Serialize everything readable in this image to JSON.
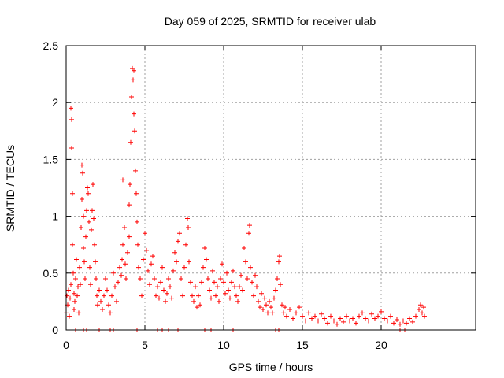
{
  "chart_data": {
    "type": "scatter",
    "title": "Day 059 of 2025, SRMTID for receiver ulab",
    "xlabel": "GPS time / hours",
    "ylabel": "SRMTID / TECUs",
    "xlim": [
      0,
      26
    ],
    "ylim": [
      0,
      2.5
    ],
    "xticks": [
      0,
      5,
      10,
      15,
      20
    ],
    "xtick_labels": [
      "0",
      "5",
      "10",
      "15",
      "20"
    ],
    "yticks": [
      0,
      0.5,
      1,
      1.5,
      2,
      2.5
    ],
    "ytick_labels": [
      "0",
      "0.5",
      "1",
      "1.5",
      "2",
      "2.5"
    ],
    "grid": true,
    "marker": "+",
    "color": "#ff0000",
    "series": [
      {
        "name": "SRMTID",
        "points": [
          [
            0.0,
            0.15
          ],
          [
            0.05,
            0.3
          ],
          [
            0.1,
            0.22
          ],
          [
            0.15,
            0.35
          ],
          [
            0.2,
            0.12
          ],
          [
            0.25,
            0.28
          ],
          [
            0.3,
            0.4
          ],
          [
            0.3,
            1.95
          ],
          [
            0.35,
            1.6
          ],
          [
            0.35,
            1.85
          ],
          [
            0.4,
            1.2
          ],
          [
            0.4,
            0.75
          ],
          [
            0.45,
            0.5
          ],
          [
            0.5,
            0.32
          ],
          [
            0.5,
            0.18
          ],
          [
            0.55,
            0.25
          ],
          [
            0.6,
            0.45
          ],
          [
            0.65,
            0.62
          ],
          [
            0.7,
            0.3
          ],
          [
            0.75,
            0.38
          ],
          [
            0.8,
            0.15
          ],
          [
            0.85,
            0.55
          ],
          [
            0.9,
            0.4
          ],
          [
            0.95,
            0.9
          ],
          [
            1.0,
            1.15
          ],
          [
            1.0,
            1.45
          ],
          [
            1.05,
            1.38
          ],
          [
            1.1,
            1.0
          ],
          [
            1.1,
            0.72
          ],
          [
            1.15,
            0.6
          ],
          [
            1.2,
            0.45
          ],
          [
            1.25,
            0.82
          ],
          [
            1.3,
            1.05
          ],
          [
            1.35,
            1.25
          ],
          [
            1.4,
            1.2
          ],
          [
            1.45,
            0.95
          ],
          [
            1.5,
            0.55
          ],
          [
            1.55,
            0.4
          ],
          [
            1.6,
            0.88
          ],
          [
            1.65,
            1.05
          ],
          [
            1.7,
            1.28
          ],
          [
            1.75,
            0.98
          ],
          [
            1.8,
            0.75
          ],
          [
            1.85,
            0.6
          ],
          [
            1.9,
            0.45
          ],
          [
            1.95,
            0.3
          ],
          [
            2.0,
            0.22
          ],
          [
            2.1,
            0.35
          ],
          [
            2.2,
            0.25
          ],
          [
            2.3,
            0.18
          ],
          [
            2.4,
            0.3
          ],
          [
            2.5,
            0.45
          ],
          [
            2.6,
            0.35
          ],
          [
            2.7,
            0.22
          ],
          [
            2.8,
            0.15
          ],
          [
            2.9,
            0.3
          ],
          [
            3.0,
            0.5
          ],
          [
            3.1,
            0.38
          ],
          [
            3.2,
            0.25
          ],
          [
            3.3,
            0.42
          ],
          [
            3.4,
            0.55
          ],
          [
            3.5,
            0.48
          ],
          [
            3.55,
            0.62
          ],
          [
            3.6,
            0.75
          ],
          [
            3.6,
            1.32
          ],
          [
            3.7,
            0.9
          ],
          [
            3.75,
            0.58
          ],
          [
            3.8,
            0.45
          ],
          [
            3.9,
            0.68
          ],
          [
            4.0,
            0.82
          ],
          [
            4.0,
            1.1
          ],
          [
            4.05,
            1.28
          ],
          [
            4.1,
            1.65
          ],
          [
            4.15,
            2.05
          ],
          [
            4.2,
            2.3
          ],
          [
            4.25,
            2.2
          ],
          [
            4.3,
            2.28
          ],
          [
            4.3,
            1.9
          ],
          [
            4.35,
            1.75
          ],
          [
            4.4,
            1.4
          ],
          [
            4.45,
            1.2
          ],
          [
            4.5,
            0.95
          ],
          [
            4.55,
            0.75
          ],
          [
            4.6,
            0.55
          ],
          [
            4.7,
            0.45
          ],
          [
            4.8,
            0.3
          ],
          [
            4.9,
            0.62
          ],
          [
            5.0,
            0.85
          ],
          [
            5.1,
            0.7
          ],
          [
            5.2,
            0.52
          ],
          [
            5.3,
            0.4
          ],
          [
            5.4,
            0.58
          ],
          [
            5.5,
            0.65
          ],
          [
            5.6,
            0.45
          ],
          [
            5.7,
            0.3
          ],
          [
            5.8,
            0.38
          ],
          [
            5.9,
            0.28
          ],
          [
            6.0,
            0.42
          ],
          [
            6.1,
            0.55
          ],
          [
            6.2,
            0.35
          ],
          [
            6.3,
            0.25
          ],
          [
            6.4,
            0.32
          ],
          [
            6.5,
            0.45
          ],
          [
            6.6,
            0.38
          ],
          [
            6.7,
            0.28
          ],
          [
            6.8,
            0.52
          ],
          [
            6.9,
            0.68
          ],
          [
            7.0,
            0.6
          ],
          [
            7.1,
            0.78
          ],
          [
            7.2,
            0.85
          ],
          [
            7.3,
            0.45
          ],
          [
            7.4,
            0.3
          ],
          [
            7.5,
            0.55
          ],
          [
            7.6,
            0.75
          ],
          [
            7.7,
            0.98
          ],
          [
            7.75,
            0.9
          ],
          [
            7.8,
            0.6
          ],
          [
            7.9,
            0.42
          ],
          [
            8.0,
            0.3
          ],
          [
            8.1,
            0.25
          ],
          [
            8.2,
            0.38
          ],
          [
            8.3,
            0.2
          ],
          [
            8.4,
            0.3
          ],
          [
            8.5,
            0.22
          ],
          [
            8.6,
            0.42
          ],
          [
            8.7,
            0.55
          ],
          [
            8.8,
            0.72
          ],
          [
            8.9,
            0.62
          ],
          [
            9.0,
            0.45
          ],
          [
            9.1,
            0.35
          ],
          [
            9.2,
            0.28
          ],
          [
            9.3,
            0.52
          ],
          [
            9.4,
            0.42
          ],
          [
            9.5,
            0.3
          ],
          [
            9.6,
            0.38
          ],
          [
            9.7,
            0.25
          ],
          [
            9.8,
            0.45
          ],
          [
            9.9,
            0.58
          ],
          [
            10.0,
            0.42
          ],
          [
            10.1,
            0.32
          ],
          [
            10.2,
            0.5
          ],
          [
            10.3,
            0.35
          ],
          [
            10.4,
            0.28
          ],
          [
            10.5,
            0.42
          ],
          [
            10.6,
            0.52
          ],
          [
            10.7,
            0.38
          ],
          [
            10.8,
            0.3
          ],
          [
            10.9,
            0.25
          ],
          [
            11.0,
            0.38
          ],
          [
            11.1,
            0.48
          ],
          [
            11.2,
            0.35
          ],
          [
            11.3,
            0.72
          ],
          [
            11.4,
            0.6
          ],
          [
            11.5,
            0.45
          ],
          [
            11.6,
            0.85
          ],
          [
            11.65,
            0.92
          ],
          [
            11.7,
            0.55
          ],
          [
            11.8,
            0.42
          ],
          [
            11.9,
            0.3
          ],
          [
            12.0,
            0.48
          ],
          [
            12.1,
            0.38
          ],
          [
            12.2,
            0.25
          ],
          [
            12.3,
            0.2
          ],
          [
            12.4,
            0.32
          ],
          [
            12.5,
            0.18
          ],
          [
            12.6,
            0.28
          ],
          [
            12.7,
            0.22
          ],
          [
            12.8,
            0.15
          ],
          [
            12.9,
            0.25
          ],
          [
            13.0,
            0.2
          ],
          [
            13.1,
            0.15
          ],
          [
            13.2,
            0.28
          ],
          [
            13.3,
            0.35
          ],
          [
            13.4,
            0.45
          ],
          [
            13.5,
            0.6
          ],
          [
            13.55,
            0.65
          ],
          [
            13.6,
            0.4
          ],
          [
            13.7,
            0.22
          ],
          [
            13.8,
            0.15
          ],
          [
            13.9,
            0.2
          ],
          [
            14.0,
            0.12
          ],
          [
            14.2,
            0.18
          ],
          [
            14.4,
            0.1
          ],
          [
            14.6,
            0.15
          ],
          [
            14.8,
            0.2
          ],
          [
            15.0,
            0.12
          ],
          [
            15.2,
            0.08
          ],
          [
            15.4,
            0.15
          ],
          [
            15.6,
            0.1
          ],
          [
            15.8,
            0.12
          ],
          [
            16.0,
            0.08
          ],
          [
            16.2,
            0.14
          ],
          [
            16.4,
            0.1
          ],
          [
            16.6,
            0.06
          ],
          [
            16.8,
            0.12
          ],
          [
            17.0,
            0.08
          ],
          [
            17.2,
            0.05
          ],
          [
            17.4,
            0.1
          ],
          [
            17.6,
            0.07
          ],
          [
            17.8,
            0.12
          ],
          [
            18.0,
            0.08
          ],
          [
            18.2,
            0.1
          ],
          [
            18.4,
            0.06
          ],
          [
            18.6,
            0.12
          ],
          [
            18.8,
            0.15
          ],
          [
            19.0,
            0.1
          ],
          [
            19.2,
            0.08
          ],
          [
            19.4,
            0.14
          ],
          [
            19.6,
            0.1
          ],
          [
            19.8,
            0.12
          ],
          [
            20.0,
            0.16
          ],
          [
            20.2,
            0.1
          ],
          [
            20.4,
            0.08
          ],
          [
            20.6,
            0.12
          ],
          [
            20.8,
            0.06
          ],
          [
            21.0,
            0.09
          ],
          [
            21.2,
            0.05
          ],
          [
            21.4,
            0.08
          ],
          [
            21.6,
            0.06
          ],
          [
            21.8,
            0.1
          ],
          [
            22.0,
            0.07
          ],
          [
            22.2,
            0.12
          ],
          [
            22.4,
            0.18
          ],
          [
            22.5,
            0.22
          ],
          [
            22.6,
            0.15
          ],
          [
            22.7,
            0.2
          ],
          [
            22.75,
            0.12
          ],
          [
            0.6,
            0.0
          ],
          [
            1.1,
            0.0
          ],
          [
            1.3,
            0.0
          ],
          [
            2.1,
            0.0
          ],
          [
            2.8,
            0.0
          ],
          [
            3.0,
            0.0
          ],
          [
            4.5,
            0.0
          ],
          [
            5.8,
            0.0
          ],
          [
            6.1,
            0.0
          ],
          [
            6.5,
            0.0
          ],
          [
            7.1,
            0.0
          ],
          [
            8.8,
            0.0
          ],
          [
            9.2,
            0.0
          ],
          [
            10.6,
            0.0
          ],
          [
            13.3,
            0.0
          ],
          [
            13.5,
            0.0
          ],
          [
            21.2,
            0.0
          ],
          [
            21.5,
            0.0
          ]
        ]
      }
    ]
  }
}
